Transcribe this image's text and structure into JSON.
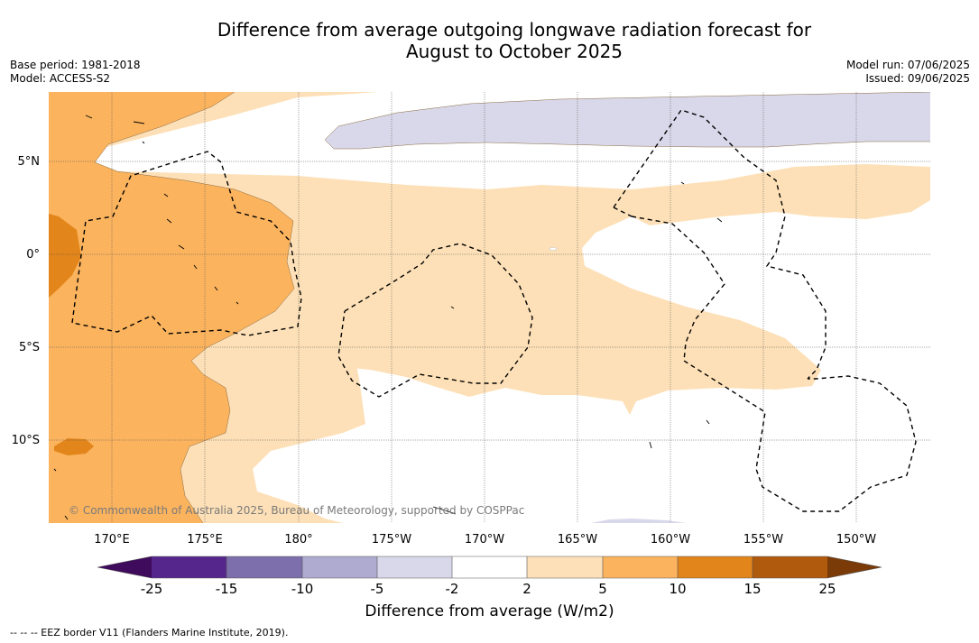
{
  "title_line1": "Difference from average outgoing longwave radiation forecast for",
  "title_line2": "August to October 2025",
  "base_period": "Base period: 1981-2018",
  "model": "Model: ACCESS-S2",
  "model_run": "Model run: 07/06/2025",
  "issued": "Issued: 09/06/2025",
  "copyright": "© Commonwealth of Australia 2025, Bureau of Meteorology, supported by COSPPac",
  "colorbar_label": "Difference from average (W/m2)",
  "footnote": "--  --  -- EEZ border V11 (Flanders Marine Institute, 2019).",
  "lon_ticks": [
    "170°E",
    "175°E",
    "180°",
    "175°W",
    "170°W",
    "165°W",
    "160°W",
    "155°W",
    "150°W"
  ],
  "lat_ticks": [
    "5°N",
    "0°",
    "5°S",
    "10°S"
  ],
  "colorbar_ticks": [
    "-25",
    "-15",
    "-10",
    "-5",
    "-2",
    "2",
    "5",
    "10",
    "15",
    "25"
  ],
  "colors": {
    "c_lt_neg25": "#3f0b5c",
    "c_neg25_neg15": "#55268b",
    "c_neg15_neg10": "#7c6fab",
    "c_neg10_neg5": "#aeaad0",
    "c_neg5_neg2": "#d8d8ea",
    "c_neg2_2": "#ffffff",
    "c_2_5": "#fde0b7",
    "c_5_10": "#fbb35e",
    "c_10_15": "#e2851a",
    "c_15_25": "#b05a0e",
    "c_gt_25": "#7a3b08"
  }
}
